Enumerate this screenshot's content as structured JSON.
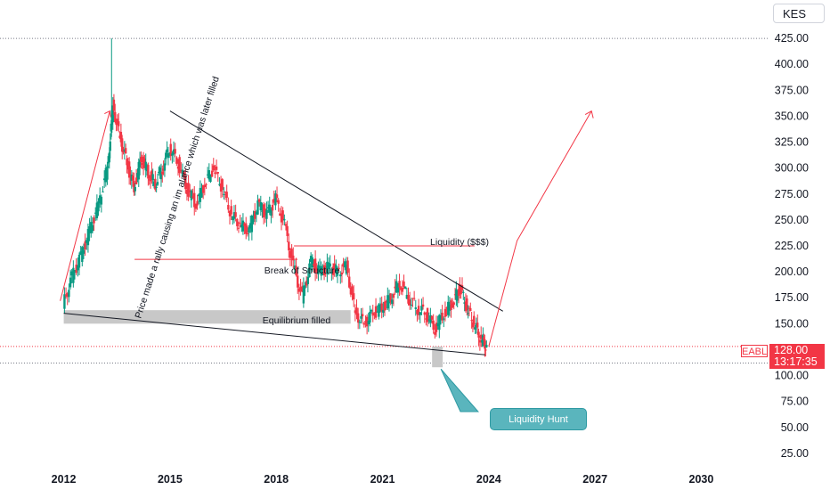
{
  "currency": "KES",
  "symbol": "EABL",
  "last_price": "128.00",
  "countdown": "13:17:35",
  "colors": {
    "up": "#089981",
    "down": "#f23645",
    "annotation": "#f23645",
    "trendline": "#131722",
    "zone": "#c8c8c8",
    "callout": "#5ab5bd"
  },
  "annotations": {
    "rally_note": "Price made a rally causing an im alance which was later filled",
    "break_of_structure": "Break of Structure",
    "liquidity": "Liquidity ($$$)",
    "equilibrium": "Equilibrium filled",
    "liquidity_hunt": "Liquidity Hunt"
  },
  "chart_data": {
    "type": "candlestick",
    "title": "",
    "xlabel": "",
    "ylabel": "",
    "x_ticks": [
      "2012",
      "2015",
      "2018",
      "2021",
      "2024",
      "2027",
      "2030"
    ],
    "y_ticks": [
      "25.00",
      "50.00",
      "75.00",
      "100.00",
      "125.00",
      "150.00",
      "175.00",
      "200.00",
      "225.00",
      "250.00",
      "275.00",
      "300.00",
      "325.00",
      "350.00",
      "375.00",
      "400.00",
      "425.00"
    ],
    "ylim": [
      12,
      462
    ],
    "xlim": [
      2010.2,
      2031.9
    ],
    "grid": false,
    "series": [
      {
        "values": [
          {
            "x": 2012.0,
            "y": 168
          },
          {
            "x": 2012.25,
            "y": 195
          },
          {
            "x": 2012.5,
            "y": 215
          },
          {
            "x": 2012.75,
            "y": 240
          },
          {
            "x": 2013.0,
            "y": 265
          },
          {
            "x": 2013.25,
            "y": 300
          },
          {
            "x": 2013.4,
            "y": 360
          },
          {
            "x": 2013.6,
            "y": 330
          },
          {
            "x": 2013.8,
            "y": 305
          },
          {
            "x": 2014.0,
            "y": 280
          },
          {
            "x": 2014.2,
            "y": 310
          },
          {
            "x": 2014.4,
            "y": 295
          },
          {
            "x": 2014.6,
            "y": 285
          },
          {
            "x": 2014.8,
            "y": 300
          },
          {
            "x": 2015.0,
            "y": 320
          },
          {
            "x": 2015.25,
            "y": 305
          },
          {
            "x": 2015.5,
            "y": 280
          },
          {
            "x": 2015.75,
            "y": 265
          },
          {
            "x": 2016.0,
            "y": 285
          },
          {
            "x": 2016.25,
            "y": 300
          },
          {
            "x": 2016.5,
            "y": 280
          },
          {
            "x": 2016.75,
            "y": 255
          },
          {
            "x": 2017.0,
            "y": 245
          },
          {
            "x": 2017.25,
            "y": 240
          },
          {
            "x": 2017.5,
            "y": 265
          },
          {
            "x": 2017.75,
            "y": 255
          },
          {
            "x": 2018.0,
            "y": 270
          },
          {
            "x": 2018.25,
            "y": 245
          },
          {
            "x": 2018.5,
            "y": 205
          },
          {
            "x": 2018.75,
            "y": 175
          },
          {
            "x": 2019.0,
            "y": 210
          },
          {
            "x": 2019.25,
            "y": 200
          },
          {
            "x": 2019.5,
            "y": 205
          },
          {
            "x": 2019.75,
            "y": 200
          },
          {
            "x": 2020.0,
            "y": 205
          },
          {
            "x": 2020.25,
            "y": 160
          },
          {
            "x": 2020.5,
            "y": 150
          },
          {
            "x": 2020.75,
            "y": 160
          },
          {
            "x": 2021.0,
            "y": 165
          },
          {
            "x": 2021.25,
            "y": 175
          },
          {
            "x": 2021.5,
            "y": 190
          },
          {
            "x": 2021.75,
            "y": 175
          },
          {
            "x": 2022.0,
            "y": 165
          },
          {
            "x": 2022.25,
            "y": 160
          },
          {
            "x": 2022.5,
            "y": 145
          },
          {
            "x": 2022.75,
            "y": 160
          },
          {
            "x": 2023.0,
            "y": 170
          },
          {
            "x": 2023.2,
            "y": 185
          },
          {
            "x": 2023.4,
            "y": 165
          },
          {
            "x": 2023.6,
            "y": 150
          },
          {
            "x": 2023.8,
            "y": 135
          },
          {
            "x": 2023.95,
            "y": 128
          }
        ]
      }
    ],
    "overlays": {
      "descending_trendline": [
        {
          "x": 2015.0,
          "y": 355
        },
        {
          "x": 2024.4,
          "y": 162
        }
      ],
      "lower_trendline": [
        {
          "x": 2012.0,
          "y": 160
        },
        {
          "x": 2023.9,
          "y": 120
        }
      ],
      "projection": [
        {
          "x": 2024.0,
          "y": 128
        },
        {
          "x": 2024.8,
          "y": 230
        },
        {
          "x": 2026.9,
          "y": 355
        }
      ],
      "break_of_structure_level": 212,
      "liquidity_level": 225,
      "equilibrium_zone": [
        150,
        163
      ],
      "reference_lines": [
        425,
        128,
        112
      ]
    }
  }
}
